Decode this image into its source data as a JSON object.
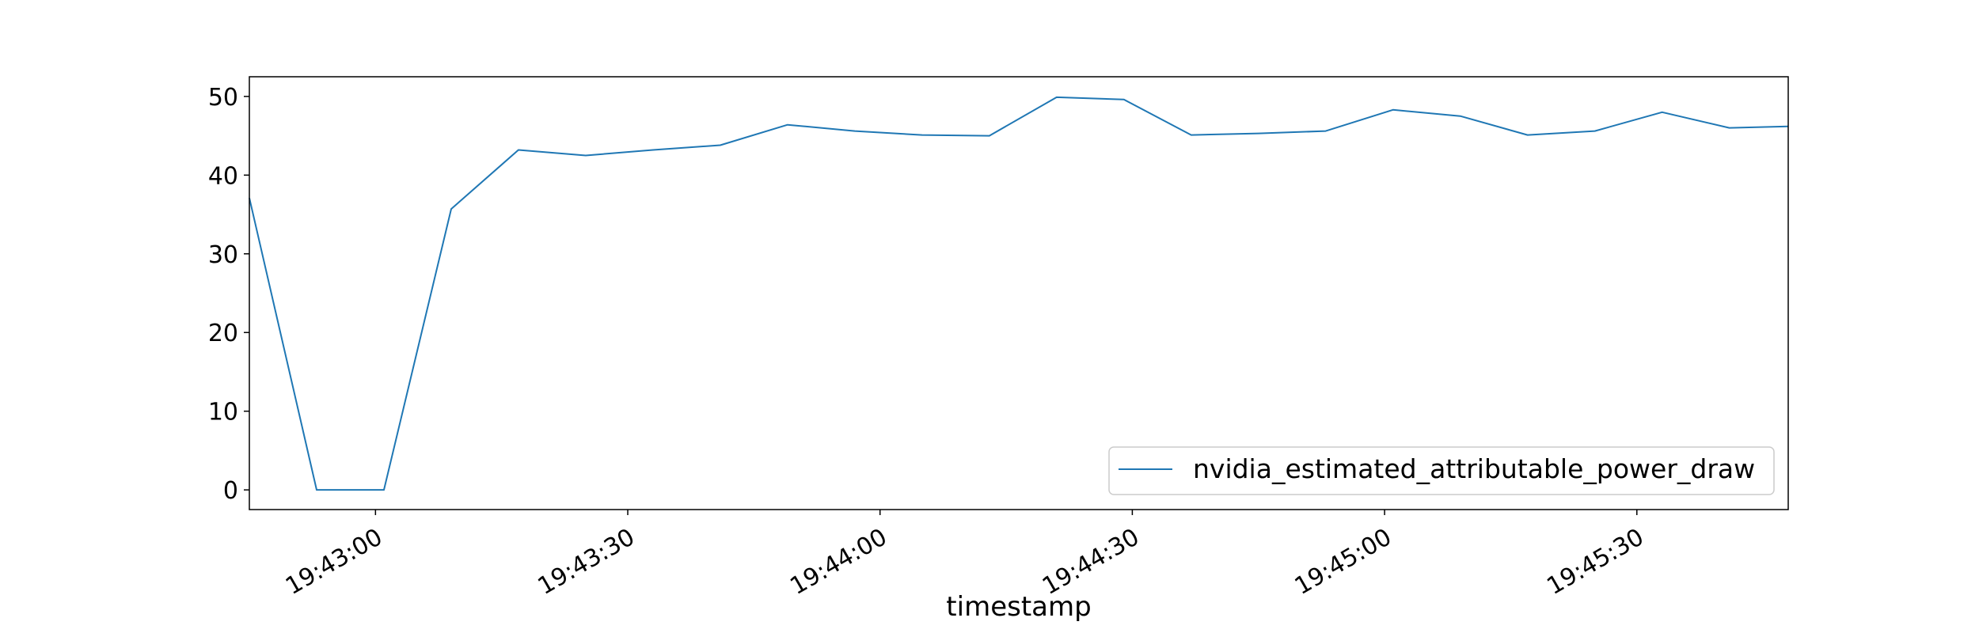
{
  "chart_data": {
    "type": "line",
    "title": "",
    "xlabel": "timestamp",
    "ylabel": "",
    "xlim": [
      "19:42:45",
      "19:45:48"
    ],
    "ylim": [
      -2.5,
      52.5
    ],
    "x_ticks": [
      "19:43:00",
      "19:43:30",
      "19:44:00",
      "19:44:30",
      "19:45:00",
      "19:45:30"
    ],
    "y_ticks": [
      0,
      10,
      20,
      30,
      40,
      50
    ],
    "grid": false,
    "legend_position": "lower right",
    "series": [
      {
        "name": "nvidia_estimated_attributable_power_draw",
        "color": "#1f77b4",
        "x": [
          "19:42:45",
          "19:42:53",
          "19:43:01",
          "19:43:09",
          "19:43:17",
          "19:43:25",
          "19:43:33",
          "19:43:41",
          "19:43:49",
          "19:43:57",
          "19:44:05",
          "19:44:13",
          "19:44:21",
          "19:44:29",
          "19:44:37",
          "19:44:45",
          "19:44:53",
          "19:45:01",
          "19:45:09",
          "19:45:17",
          "19:45:25",
          "19:45:33",
          "19:45:41",
          "19:45:48"
        ],
        "y": [
          37.1,
          0.0,
          0.0,
          35.7,
          43.2,
          42.5,
          43.2,
          43.8,
          46.4,
          45.6,
          45.1,
          45.0,
          49.9,
          49.6,
          45.1,
          45.3,
          45.6,
          48.3,
          47.5,
          45.1,
          45.6,
          48.0,
          46.0,
          46.2
        ]
      }
    ]
  }
}
